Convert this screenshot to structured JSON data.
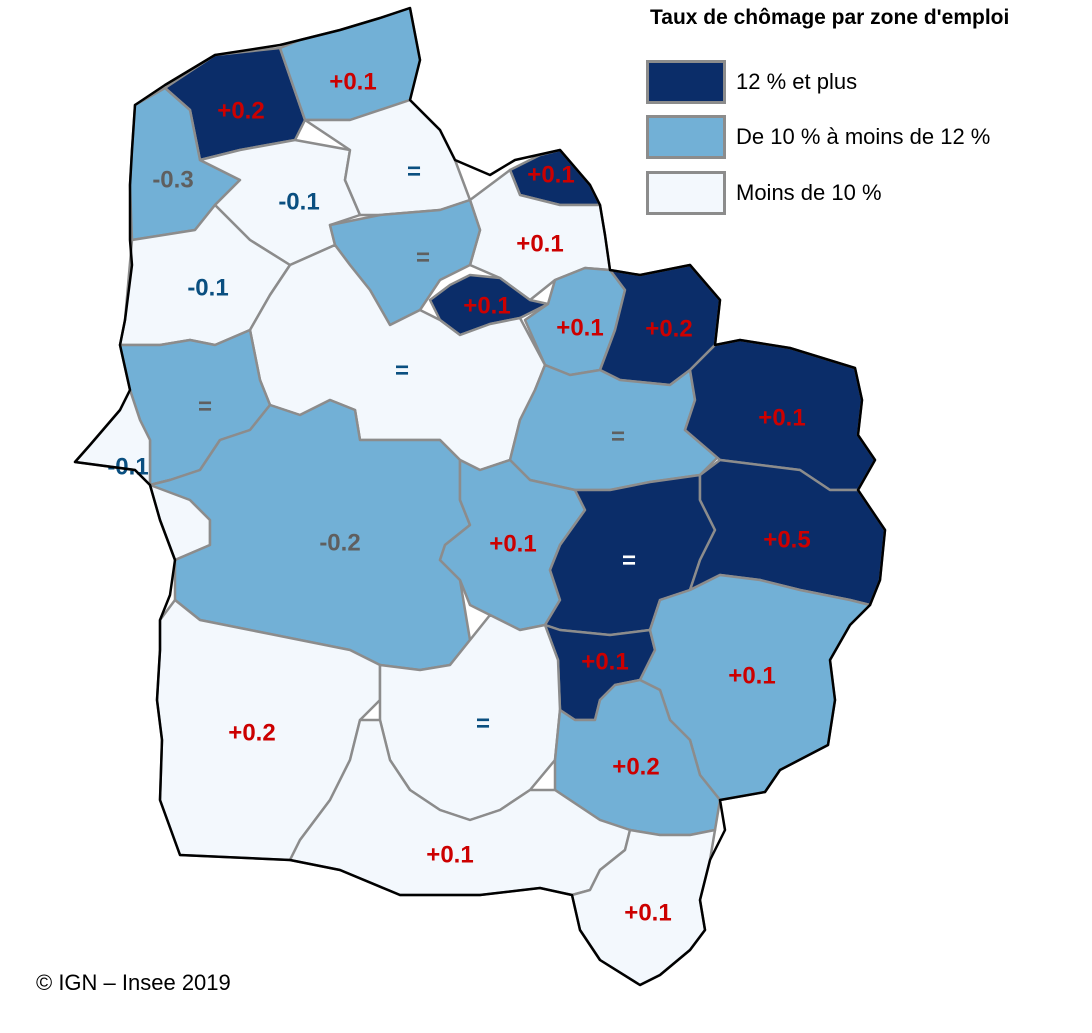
{
  "legend": {
    "title": "Taux de chômage par zone d'emploi",
    "items": [
      {
        "label": "12 % et plus",
        "color": "#0b2d69"
      },
      {
        "label": "De 10 % à moins de 12 %",
        "color": "#72b0d6"
      },
      {
        "label": "Moins de 10 %",
        "color": "#f3f8fd"
      }
    ]
  },
  "credit": "© IGN – Insee 2019",
  "label_colors": {
    "increase": "#cc0000",
    "decrease": "#0a4f80",
    "stable_dark": "#ffffff",
    "stable_light": "#0a4f80",
    "muted": "#5f5f5f"
  },
  "zones": [
    {
      "label": "+0.2",
      "class": "high",
      "label_tone": "increase"
    },
    {
      "label": "+0.1",
      "class": "mid",
      "label_tone": "increase"
    },
    {
      "label": "-0.3",
      "class": "mid",
      "label_tone": "muted"
    },
    {
      "label": "-0.1",
      "class": "low",
      "label_tone": "decrease"
    },
    {
      "label": "=",
      "class": "low",
      "label_tone": "stable_light"
    },
    {
      "label": "+0.1",
      "class": "high",
      "label_tone": "increase"
    },
    {
      "label": "+0.1",
      "class": "low",
      "label_tone": "increase"
    },
    {
      "label": "=",
      "class": "mid",
      "label_tone": "muted"
    },
    {
      "label": "-0.1",
      "class": "low",
      "label_tone": "decrease"
    },
    {
      "label": "+0.1",
      "class": "high",
      "label_tone": "increase"
    },
    {
      "label": "+0.1",
      "class": "mid",
      "label_tone": "increase"
    },
    {
      "label": "+0.2",
      "class": "high",
      "label_tone": "increase"
    },
    {
      "label": "=",
      "class": "low",
      "label_tone": "stable_light"
    },
    {
      "label": "=",
      "class": "mid",
      "label_tone": "muted"
    },
    {
      "label": "=",
      "class": "mid",
      "label_tone": "muted"
    },
    {
      "label": "+0.1",
      "class": "high",
      "label_tone": "increase"
    },
    {
      "label": "-0.1",
      "class": "low",
      "label_tone": "decrease"
    },
    {
      "label": "-0.2",
      "class": "mid",
      "label_tone": "muted"
    },
    {
      "label": "+0.1",
      "class": "mid",
      "label_tone": "increase"
    },
    {
      "label": "=",
      "class": "high",
      "label_tone": "stable_dark"
    },
    {
      "label": "+0.5",
      "class": "high",
      "label_tone": "increase"
    },
    {
      "label": "+0.1",
      "class": "high",
      "label_tone": "increase"
    },
    {
      "label": "+0.1",
      "class": "mid",
      "label_tone": "increase"
    },
    {
      "label": "+0.2",
      "class": "low",
      "label_tone": "increase"
    },
    {
      "label": "=",
      "class": "low",
      "label_tone": "stable_light"
    },
    {
      "label": "+0.2",
      "class": "mid",
      "label_tone": "increase"
    },
    {
      "label": "+0.1",
      "class": "low",
      "label_tone": "increase"
    },
    {
      "label": "+0.1",
      "class": "low",
      "label_tone": "increase"
    }
  ]
}
